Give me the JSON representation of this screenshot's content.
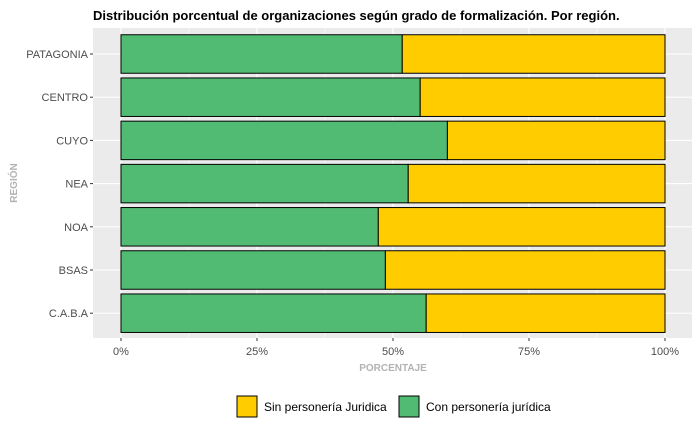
{
  "chart_data": {
    "type": "bar",
    "orientation": "horizontal",
    "stacked": true,
    "title": "Distribución porcentual de organizaciones según grado de formalización. Por región.",
    "xlabel": "PORCENTAJE",
    "ylabel": "REGIÓN",
    "xlim": [
      0,
      100
    ],
    "x_ticks": [
      "0%",
      "25%",
      "50%",
      "75%",
      "100%"
    ],
    "categories": [
      "PATAGONIA",
      "CENTRO",
      "CUYO",
      "NEA",
      "NOA",
      "BSAS",
      "C.A.B.A"
    ],
    "series": [
      {
        "name": "Con personería jurídica",
        "color": "#52bb73",
        "values": [
          51.7,
          55.0,
          60.0,
          52.8,
          47.3,
          48.6,
          56.1
        ]
      },
      {
        "name": "Sin personería Juridica",
        "color": "#ffcc00",
        "values": [
          48.3,
          45.0,
          40.0,
          47.2,
          52.7,
          51.4,
          43.9
        ]
      }
    ],
    "legend": {
      "position": "bottom",
      "items": [
        {
          "label": "Sin personería Juridica",
          "color": "#ffcc00"
        },
        {
          "label": "Con personería jurídica",
          "color": "#52bb73"
        }
      ]
    },
    "panel_background": "#ebebeb",
    "grid": true
  }
}
